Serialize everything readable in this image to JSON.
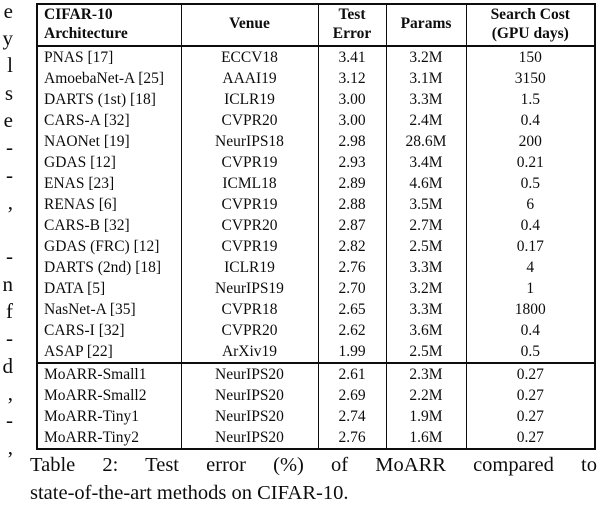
{
  "page": {
    "background": "#ffffff",
    "text_color": "#0d0d0d"
  },
  "left_margin": {
    "fragments": [
      {
        "char": "e",
        "baseline": 17
      },
      {
        "char": "y",
        "baseline": 44
      },
      {
        "char": "l",
        "baseline": 71
      },
      {
        "char": "s",
        "baseline": 99
      },
      {
        "char": "e",
        "baseline": 126
      },
      {
        "char": "-",
        "baseline": 153
      },
      {
        "char": "-",
        "baseline": 181
      },
      {
        "char": ",",
        "baseline": 208
      },
      {
        "char": "-",
        "baseline": 262
      },
      {
        "char": "n",
        "baseline": 290
      },
      {
        "char": "f",
        "baseline": 317
      },
      {
        "char": "-",
        "baseline": 344
      },
      {
        "char": "d",
        "baseline": 372
      },
      {
        "char": ",",
        "baseline": 399
      },
      {
        "char": "-",
        "baseline": 426
      },
      {
        "char": ",",
        "baseline": 453
      }
    ]
  },
  "table": {
    "column_keys": [
      "architecture",
      "venue",
      "test-error",
      "params",
      "search-cost"
    ],
    "headers": {
      "architecture": "CIFAR-10\nArchitecture",
      "venue": "Venue",
      "test_error": "Test\nError",
      "params": "Params",
      "search_cost": "Search Cost\n(GPU days)"
    },
    "baseline_rows": [
      [
        "PNAS [17]",
        "ECCV18",
        "3.41",
        "3.2M",
        "150"
      ],
      [
        "AmoebaNet-A [25]",
        "AAAI19",
        "3.12",
        "3.1M",
        "3150"
      ],
      [
        "DARTS (1st) [18]",
        "ICLR19",
        "3.00",
        "3.3M",
        "1.5"
      ],
      [
        "CARS-A [32]",
        "CVPR20",
        "3.00",
        "2.4M",
        "0.4"
      ],
      [
        "NAONet [19]",
        "NeurIPS18",
        "2.98",
        "28.6M",
        "200"
      ],
      [
        "GDAS [12]",
        "CVPR19",
        "2.93",
        "3.4M",
        "0.21"
      ],
      [
        "ENAS [23]",
        "ICML18",
        "2.89",
        "4.6M",
        "0.5"
      ],
      [
        "RENAS [6]",
        "CVPR19",
        "2.88",
        "3.5M",
        "6"
      ],
      [
        "CARS-B [32]",
        "CVPR20",
        "2.87",
        "2.7M",
        "0.4"
      ],
      [
        "GDAS (FRC) [12]",
        "CVPR19",
        "2.82",
        "2.5M",
        "0.17"
      ],
      [
        "DARTS (2nd) [18]",
        "ICLR19",
        "2.76",
        "3.3M",
        "4"
      ],
      [
        "DATA [5]",
        "NeurIPS19",
        "2.70",
        "3.2M",
        "1"
      ],
      [
        "NasNet-A [35]",
        "CVPR18",
        "2.65",
        "3.3M",
        "1800"
      ],
      [
        "CARS-I [32]",
        "CVPR20",
        "2.62",
        "3.6M",
        "0.4"
      ],
      [
        "ASAP [22]",
        "ArXiv19",
        "1.99",
        "2.5M",
        "0.5"
      ]
    ],
    "moarr_rows": [
      [
        "MoARR-Small1",
        "NeurIPS20",
        "2.61",
        "2.3M",
        "0.27"
      ],
      [
        "MoARR-Small2",
        "NeurIPS20",
        "2.69",
        "2.2M",
        "0.27"
      ],
      [
        "MoARR-Tiny1",
        "NeurIPS20",
        "2.74",
        "1.9M",
        "0.27"
      ],
      [
        "MoARR-Tiny2",
        "NeurIPS20",
        "2.76",
        "1.6M",
        "0.27"
      ]
    ]
  },
  "caption": {
    "line1": "Table 2: Test error (%) of MoARR compared to",
    "line2": "state-of-the-art methods on CIFAR-10."
  }
}
